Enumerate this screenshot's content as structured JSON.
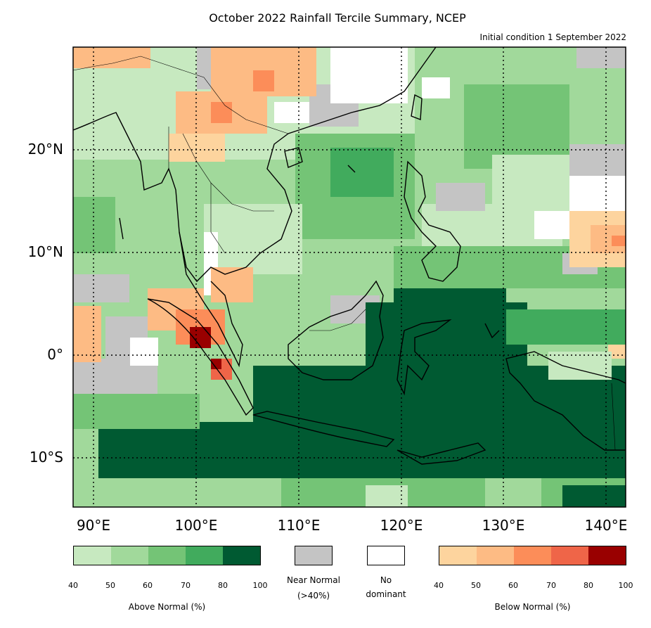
{
  "title": "October 2022 Rainfall Tercile Summary, NCEP",
  "subtitle": "Initial condition 1 September 2022",
  "lat_labels": [
    "20°N",
    "10°N",
    "0°",
    "10°S"
  ],
  "lon_labels": [
    "90°E",
    "100°E",
    "110°E",
    "120°E",
    "130°E",
    "140°E"
  ],
  "legend": {
    "above_normal": {
      "caption": "Above Normal (%)",
      "ticks": [
        "40",
        "50",
        "60",
        "70",
        "80",
        "100"
      ],
      "colors": [
        "#c7e9c0",
        "#a1d99b",
        "#74c476",
        "#41ab5d",
        "#005a32"
      ]
    },
    "near_normal": {
      "caption_line1": "Near Normal",
      "caption_line2": "(>40%)",
      "color": "#c4c4c4"
    },
    "no_dominant": {
      "caption_line1": "No",
      "caption_line2": "dominant",
      "color": "#ffffff"
    },
    "below_normal": {
      "caption": "Below Normal (%)",
      "ticks": [
        "40",
        "50",
        "60",
        "70",
        "80",
        "100"
      ],
      "colors": [
        "#fdd49e",
        "#fdbb84",
        "#fc8d59",
        "#ef6548",
        "#990000"
      ]
    }
  }
}
